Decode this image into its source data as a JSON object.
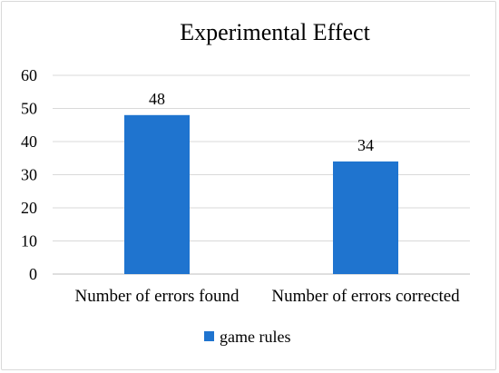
{
  "chart_data": {
    "type": "bar",
    "title": "Experimental Effect",
    "categories": [
      "Number of errors found",
      "Number of errors corrected"
    ],
    "series": [
      {
        "name": "game rules",
        "values": [
          48,
          34
        ],
        "color": "#1f74cf"
      }
    ],
    "data_labels": [
      "48",
      "34"
    ],
    "yticks": [
      0,
      10,
      20,
      30,
      40,
      50,
      60
    ],
    "ylim": [
      0,
      60
    ],
    "grid": true,
    "legend_position": "bottom",
    "xlabel": "",
    "ylabel": ""
  }
}
